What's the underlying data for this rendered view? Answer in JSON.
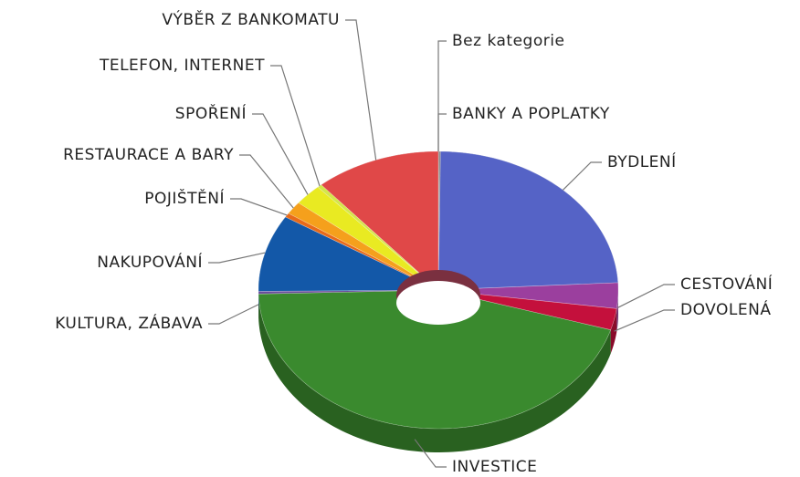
{
  "chart_data": {
    "type": "pie",
    "donut": true,
    "categories": [
      "Bez kategorie",
      "BANKY A POPLATKY",
      "BYDLENÍ",
      "CESTOVÁNÍ",
      "DOVOLENÁ",
      "INVESTICE",
      "KULTURA, ZÁBAVA",
      "NAKUPOVÁNÍ",
      "POJIŠTĚNÍ",
      "RESTAURACE A BARY",
      "SPOŘENÍ",
      "TELEFON, INTERNET",
      "VÝBĚR Z BANKOMATU"
    ],
    "values": [
      0.1,
      0.1,
      24,
      3,
      2.5,
      45,
      0.3,
      9,
      0.5,
      1.5,
      2.5,
      0.4,
      11.3
    ],
    "colors": [
      "#8a8a8a",
      "#6a6a6a",
      "#5563c6",
      "#9b3f9e",
      "#c4103c",
      "#3a8a2e",
      "#6a4a9a",
      "#1358a8",
      "#e86a1a",
      "#f5a01c",
      "#e9ea22",
      "#d4e64a",
      "#e04848"
    ]
  }
}
